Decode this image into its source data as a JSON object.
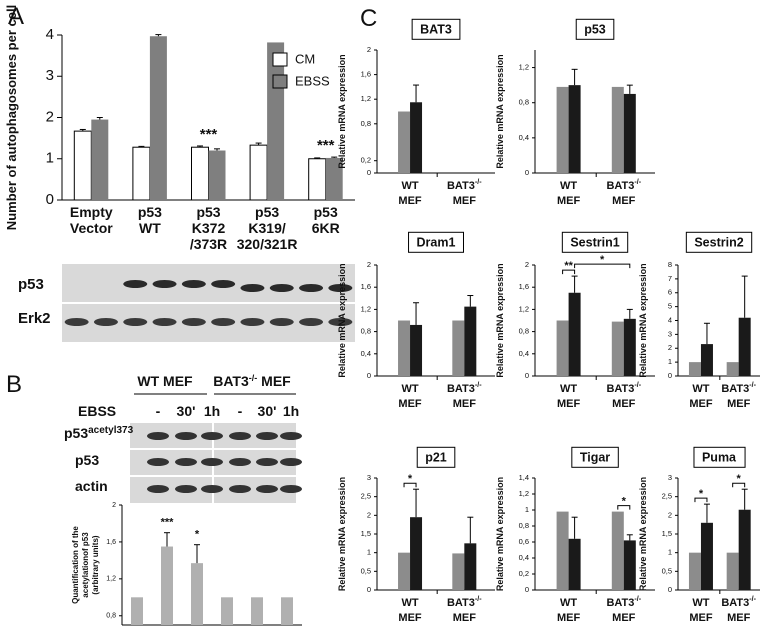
{
  "panel_labels": [
    "A",
    "B",
    "C"
  ],
  "blot_a": {
    "rows": [
      "p53",
      "Erk2"
    ]
  },
  "blot_b": {
    "groups": [
      {
        "text": "WT MEF"
      },
      {
        "text": "BAT3",
        "sup": "-/-",
        "tail": " MEF"
      }
    ],
    "treatment": "EBSS",
    "lanes": [
      "-",
      "30'",
      "1h",
      "-",
      "30'",
      "1h"
    ],
    "rows": [
      {
        "text": "p53",
        "sup": "acetyl373"
      },
      {
        "text": "p53"
      },
      {
        "text": "actin"
      }
    ]
  },
  "chart_data": [
    {
      "type": "bar",
      "ylabel": "Number of autophagosomes per cell",
      "categories": [
        [
          "Empty",
          "Vector"
        ],
        [
          "p53",
          "WT"
        ],
        [
          "p53",
          "K372",
          "/373R"
        ],
        [
          "p53",
          "K319/",
          "320/321R"
        ],
        [
          "p53",
          "6KR"
        ]
      ],
      "series": [
        {
          "name": "CM",
          "color": "#ffffff",
          "values": [
            1.67,
            1.28,
            1.28,
            1.33,
            1.0
          ],
          "errors": [
            0.04,
            0.02,
            0.03,
            0.05,
            0.02
          ]
        },
        {
          "name": "EBSS",
          "color": "#7f7f7f",
          "values": [
            1.95,
            3.97,
            1.2,
            3.82,
            1.02
          ],
          "errors": [
            0.05,
            0.04,
            0.04,
            0,
            0.02
          ]
        }
      ],
      "ylim": [
        0,
        4
      ],
      "yticks": [
        0,
        1,
        2,
        3,
        4
      ],
      "legend": "top-right",
      "annotations": [
        "***",
        "***"
      ]
    },
    {
      "type": "bar",
      "ylabel": [
        "Quantification of the",
        "acetylationof p53",
        "(arbitrary units)"
      ],
      "categories": [
        null,
        null,
        null,
        null,
        null,
        null
      ],
      "series": [
        {
          "color": "#b0b0b0",
          "values": [
            1,
            1.55,
            1.37,
            1,
            1,
            1
          ],
          "errors": [
            0,
            0.15,
            0.2,
            0,
            0,
            0
          ]
        }
      ],
      "ylim": [
        0.7,
        2
      ],
      "yticks": [
        {
          "value": 0.8,
          "label": "0,8"
        },
        {
          "value": 1.2,
          "label": "1,2"
        },
        {
          "value": 1.6,
          "label": "1,6"
        },
        2
      ],
      "annotations": [
        "***",
        "*"
      ]
    },
    {
      "type": "bar",
      "title": "BAT3",
      "ylabel": "Relative mRNA expression",
      "categories": [
        [
          "WT",
          "MEF"
        ],
        [
          [
            "BAT3",
            "-/-"
          ],
          "MEF"
        ]
      ],
      "series": [
        {
          "color": "#8c8c8c",
          "values": [
            1.0,
            null
          ],
          "errors": [
            0,
            null
          ]
        },
        {
          "color": "#1a1a1a",
          "values": [
            1.15,
            null
          ],
          "errors": [
            0.28,
            null
          ]
        }
      ],
      "ylim": [
        0,
        2
      ],
      "yticks": [
        0,
        {
          "value": 0.2,
          "label": "0,2"
        },
        {
          "value": 0.8,
          "label": "0,8"
        },
        {
          "value": 1.2,
          "label": "1,2"
        },
        {
          "value": 1.6,
          "label": "1,6"
        },
        2
      ]
    },
    {
      "type": "bar",
      "title": "p53",
      "ylabel": "Relative mRNA expression",
      "categories": [
        [
          "WT",
          "MEF"
        ],
        [
          [
            "BAT3",
            "-/-"
          ],
          "MEF"
        ]
      ],
      "series": [
        {
          "color": "#8c8c8c",
          "values": [
            0.98,
            0.98
          ],
          "errors": [
            0,
            0
          ]
        },
        {
          "color": "#1a1a1a",
          "values": [
            1.0,
            0.9
          ],
          "errors": [
            0.18,
            0.1
          ]
        }
      ],
      "ylim": [
        0,
        1.4
      ],
      "yticks": [
        0,
        {
          "value": 0.4,
          "label": "0,4"
        },
        {
          "value": 0.8,
          "label": "0,8"
        },
        {
          "value": 1.2,
          "label": "1,2"
        }
      ]
    },
    {
      "type": "bar",
      "title": "Dram1",
      "ylabel": "Relative mRNA expression",
      "categories": [
        [
          "WT",
          "MEF"
        ],
        [
          [
            "BAT3",
            "-/-"
          ],
          "MEF"
        ]
      ],
      "series": [
        {
          "color": "#8c8c8c",
          "values": [
            1.0,
            1.0
          ],
          "errors": [
            0,
            0
          ]
        },
        {
          "color": "#1a1a1a",
          "values": [
            0.92,
            1.25
          ],
          "errors": [
            0.4,
            0.2
          ]
        }
      ],
      "ylim": [
        0,
        2
      ],
      "yticks": [
        0,
        {
          "value": 0.4,
          "label": "0,4"
        },
        {
          "value": 0.8,
          "label": "0,8"
        },
        {
          "value": 1.2,
          "label": "1,2"
        },
        {
          "value": 1.6,
          "label": "1,6"
        },
        2
      ]
    },
    {
      "type": "bar",
      "title": "Sestrin1",
      "ylabel": "Relative mRNA expression",
      "categories": [
        [
          "WT",
          "MEF"
        ],
        [
          [
            "BAT3",
            "-/-"
          ],
          "MEF"
        ]
      ],
      "series": [
        {
          "color": "#8c8c8c",
          "values": [
            1.0,
            0.98
          ],
          "errors": [
            0,
            0
          ]
        },
        {
          "color": "#1a1a1a",
          "values": [
            1.5,
            1.03
          ],
          "errors": [
            0.3,
            0.17
          ]
        }
      ],
      "ylim": [
        0,
        2
      ],
      "yticks": [
        0,
        {
          "value": 0.4,
          "label": "0,4"
        },
        {
          "value": 0.8,
          "label": "0,8"
        },
        {
          "value": 1.2,
          "label": "1,2"
        },
        {
          "value": 1.6,
          "label": "1,6"
        },
        2
      ],
      "annotations": [
        "**",
        "*"
      ]
    },
    {
      "type": "bar",
      "title": "Sestrin2",
      "ylabel": "Relative mRNA expression",
      "categories": [
        [
          "WT",
          "MEF"
        ],
        [
          [
            "BAT3",
            "-/-"
          ],
          "MEF"
        ]
      ],
      "series": [
        {
          "color": "#8c8c8c",
          "values": [
            1.0,
            1.0
          ],
          "errors": [
            0,
            0
          ]
        },
        {
          "color": "#1a1a1a",
          "values": [
            2.3,
            4.2
          ],
          "errors": [
            1.5,
            3.0
          ]
        }
      ],
      "ylim": [
        0,
        8
      ],
      "yticks": [
        0,
        1,
        2,
        3,
        4,
        5,
        6,
        7,
        8
      ]
    },
    {
      "type": "bar",
      "title": "p21",
      "ylabel": "Relative mRNA expression",
      "categories": [
        [
          "WT",
          "MEF"
        ],
        [
          [
            "BAT3",
            "-/-"
          ],
          "MEF"
        ]
      ],
      "series": [
        {
          "color": "#8c8c8c",
          "values": [
            1.0,
            0.98
          ],
          "errors": [
            0,
            0
          ]
        },
        {
          "color": "#1a1a1a",
          "values": [
            1.95,
            1.25
          ],
          "errors": [
            0.75,
            0.7
          ]
        }
      ],
      "ylim": [
        0,
        3
      ],
      "yticks": [
        0,
        {
          "value": 0.5,
          "label": "0,5"
        },
        1,
        {
          "value": 1.5,
          "label": "1,5"
        },
        2,
        {
          "value": 2.5,
          "label": "2,5"
        },
        3
      ],
      "annotations": [
        "*"
      ]
    },
    {
      "type": "bar",
      "title": "Tigar",
      "ylabel": "Relative mRNA expression",
      "categories": [
        [
          "WT",
          "MEF"
        ],
        [
          [
            "BAT3",
            "-/-"
          ],
          "MEF"
        ]
      ],
      "series": [
        {
          "color": "#8c8c8c",
          "values": [
            0.98,
            0.98
          ],
          "errors": [
            0,
            0
          ]
        },
        {
          "color": "#1a1a1a",
          "values": [
            0.64,
            0.62
          ],
          "errors": [
            0.27,
            0.07
          ]
        }
      ],
      "ylim": [
        0,
        1.4
      ],
      "yticks": [
        0,
        {
          "value": 0.2,
          "label": "0,2"
        },
        {
          "value": 0.4,
          "label": "0,4"
        },
        {
          "value": 0.6,
          "label": "0,6"
        },
        {
          "value": 0.8,
          "label": "0,8"
        },
        1,
        {
          "value": 1.2,
          "label": "1,2"
        },
        {
          "value": 1.4,
          "label": "1,4"
        }
      ],
      "annotations": [
        "*"
      ]
    },
    {
      "type": "bar",
      "title": "Puma",
      "ylabel": "Relative mRNA expression",
      "categories": [
        [
          "WT",
          "MEF"
        ],
        [
          [
            "BAT3",
            "-/-"
          ],
          "MEF"
        ]
      ],
      "series": [
        {
          "color": "#8c8c8c",
          "values": [
            1.0,
            1.0
          ],
          "errors": [
            0,
            0
          ]
        },
        {
          "color": "#1a1a1a",
          "values": [
            1.8,
            2.15
          ],
          "errors": [
            0.5,
            0.55
          ]
        }
      ],
      "ylim": [
        0,
        3
      ],
      "yticks": [
        0,
        {
          "value": 0.5,
          "label": "0,5"
        },
        1,
        {
          "value": 1.5,
          "label": "1,5"
        },
        2,
        {
          "value": 2.5,
          "label": "2,5"
        },
        3
      ],
      "annotations": [
        "*",
        "*"
      ]
    }
  ]
}
